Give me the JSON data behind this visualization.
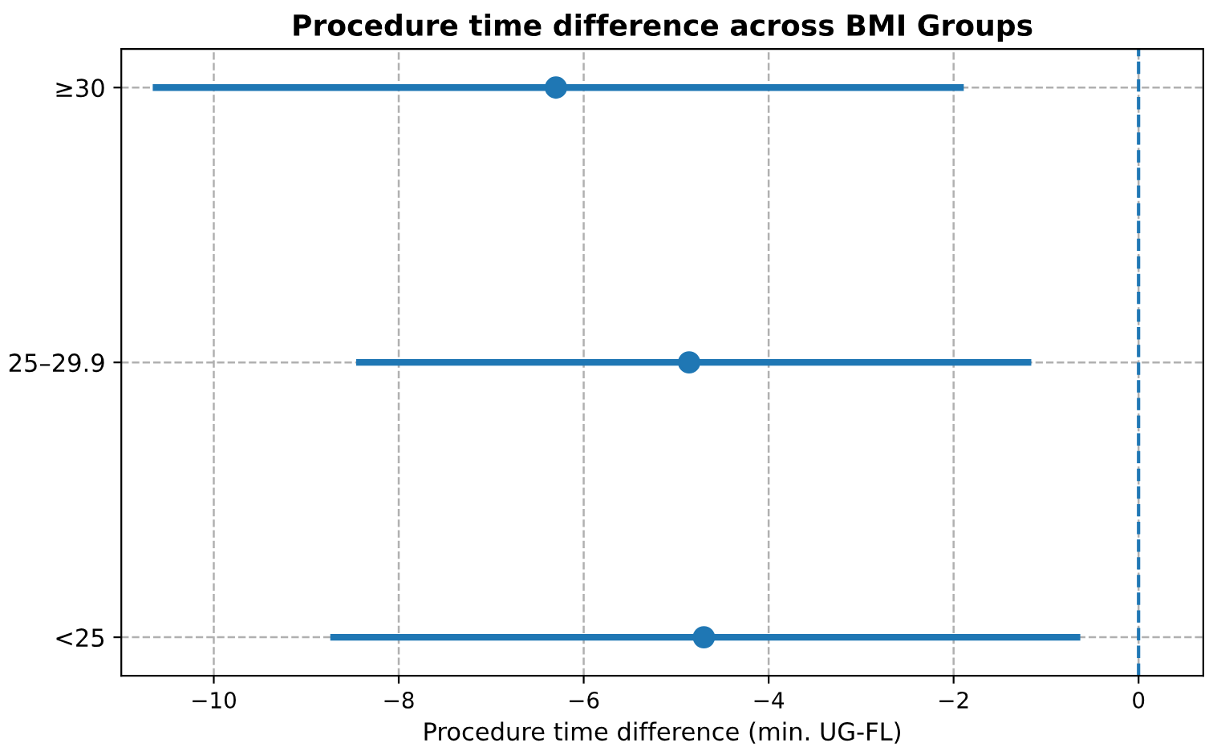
{
  "chart_data": {
    "type": "scatter",
    "orientation": "horizontal",
    "title": "Procedure time difference across BMI Groups",
    "xlabel": "Procedure time difference (min. UG-FL)",
    "categories": [
      "≥30",
      "25–29.9",
      "<25"
    ],
    "values": [
      -6.3,
      -4.86,
      -4.7
    ],
    "errors": [
      [
        -10.66,
        -1.89
      ],
      [
        -8.46,
        -1.16
      ],
      [
        -8.74,
        -0.63
      ]
    ],
    "color": "#1f77b4",
    "marker": "circle",
    "xlim": [
      -11.0,
      0.7
    ],
    "xticks": [
      {
        "value": -10,
        "label": "−10"
      },
      {
        "value": -8,
        "label": "−8"
      },
      {
        "value": -6,
        "label": "−6"
      },
      {
        "value": -4,
        "label": "−4"
      },
      {
        "value": -2,
        "label": "−2"
      },
      0
    ],
    "ref_lines": [
      {
        "axis": "x",
        "value": 0,
        "color": "#1f77b4",
        "line_style": "dashed"
      }
    ],
    "grid": true
  }
}
